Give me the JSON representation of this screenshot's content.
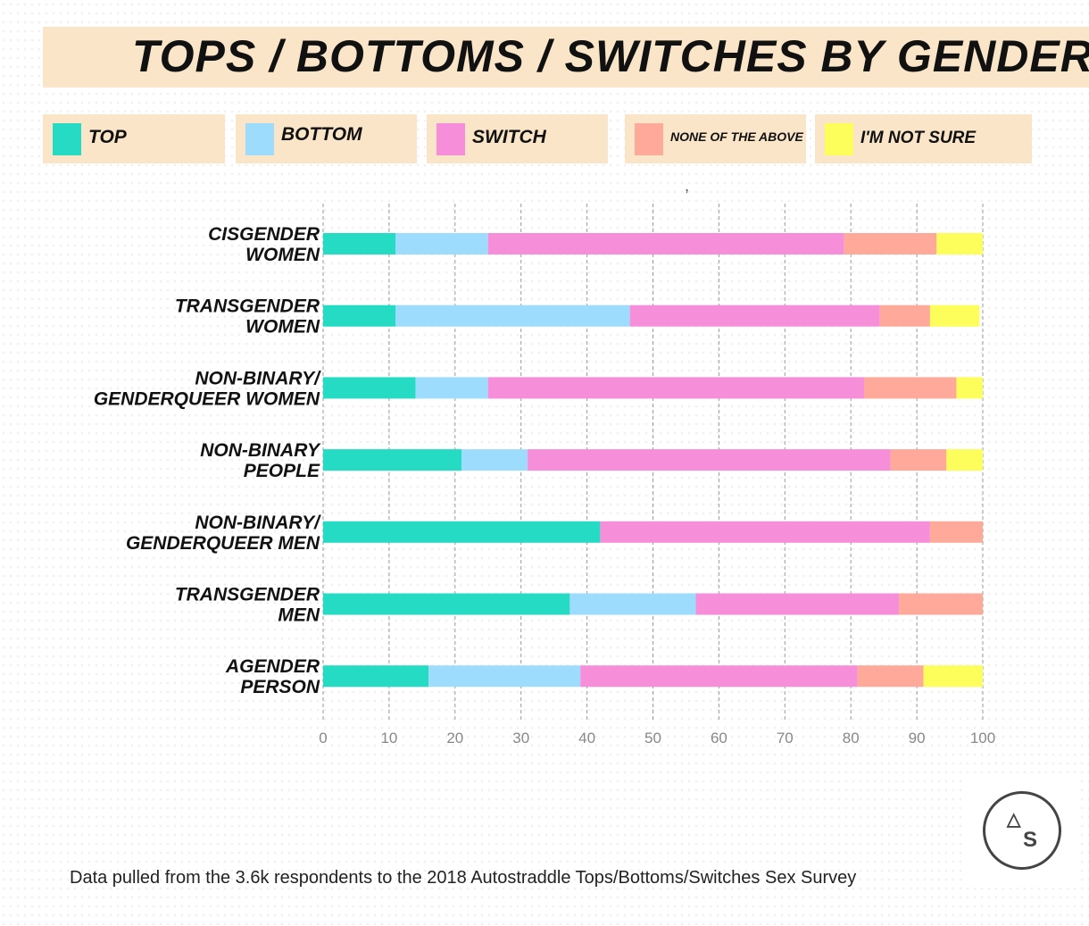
{
  "colors": {
    "top": "#25dbc3",
    "bottom": "#9edcfd",
    "switch": "#f78ed9",
    "none": "#fea999",
    "not_sure": "#fdfd5c",
    "banner": "#fae5c8"
  },
  "stray_mark": ",",
  "chart_data": {
    "type": "bar",
    "orientation": "horizontal",
    "stacked": true,
    "title": "TOPS / BOTTOMS / SWITCHES BY GENDER",
    "xlabel": "",
    "ylabel": "",
    "xlim": [
      0,
      100
    ],
    "xticks": [
      "0",
      "10",
      "20",
      "30",
      "40",
      "50",
      "60",
      "70",
      "80",
      "90",
      "100"
    ],
    "grid": true,
    "legend_placement": "top",
    "categories": [
      [
        "CISGENDER",
        "WOMEN"
      ],
      [
        "TRANSGENDER",
        "WOMEN"
      ],
      [
        "NON-BINARY/",
        "GENDERQUEER WOMEN"
      ],
      [
        "NON-BINARY",
        "PEOPLE"
      ],
      [
        "NON-BINARY/",
        "GENDERQUEER MEN"
      ],
      [
        "TRANSGENDER",
        "MEN"
      ],
      [
        "AGENDER",
        "PERSON"
      ]
    ],
    "series": [
      {
        "name": "TOP",
        "key": "top",
        "values": [
          11,
          11,
          14,
          21,
          42,
          37.4,
          16
        ]
      },
      {
        "name": "BOTTOM",
        "key": "bottom",
        "values": [
          14,
          35.5,
          11,
          10,
          0,
          19.1,
          23
        ]
      },
      {
        "name": "SWITCH",
        "key": "switch",
        "values": [
          54,
          37.9,
          57,
          55,
          50,
          30.8,
          42
        ]
      },
      {
        "name": "NONE OF THE ABOVE",
        "key": "none",
        "values": [
          14,
          7.6,
          14,
          8.5,
          8,
          12.7,
          10
        ]
      },
      {
        "name": "I'M NOT SURE",
        "key": "not_sure",
        "values": [
          7,
          7.5,
          4,
          5.5,
          0,
          0,
          9
        ]
      }
    ],
    "note": "Data pulled from the 3.6k respondents to the 2018 Autostraddle Tops/Bottoms/Switches Sex Survey"
  },
  "logo": {
    "letters": [
      "A",
      "S"
    ]
  }
}
